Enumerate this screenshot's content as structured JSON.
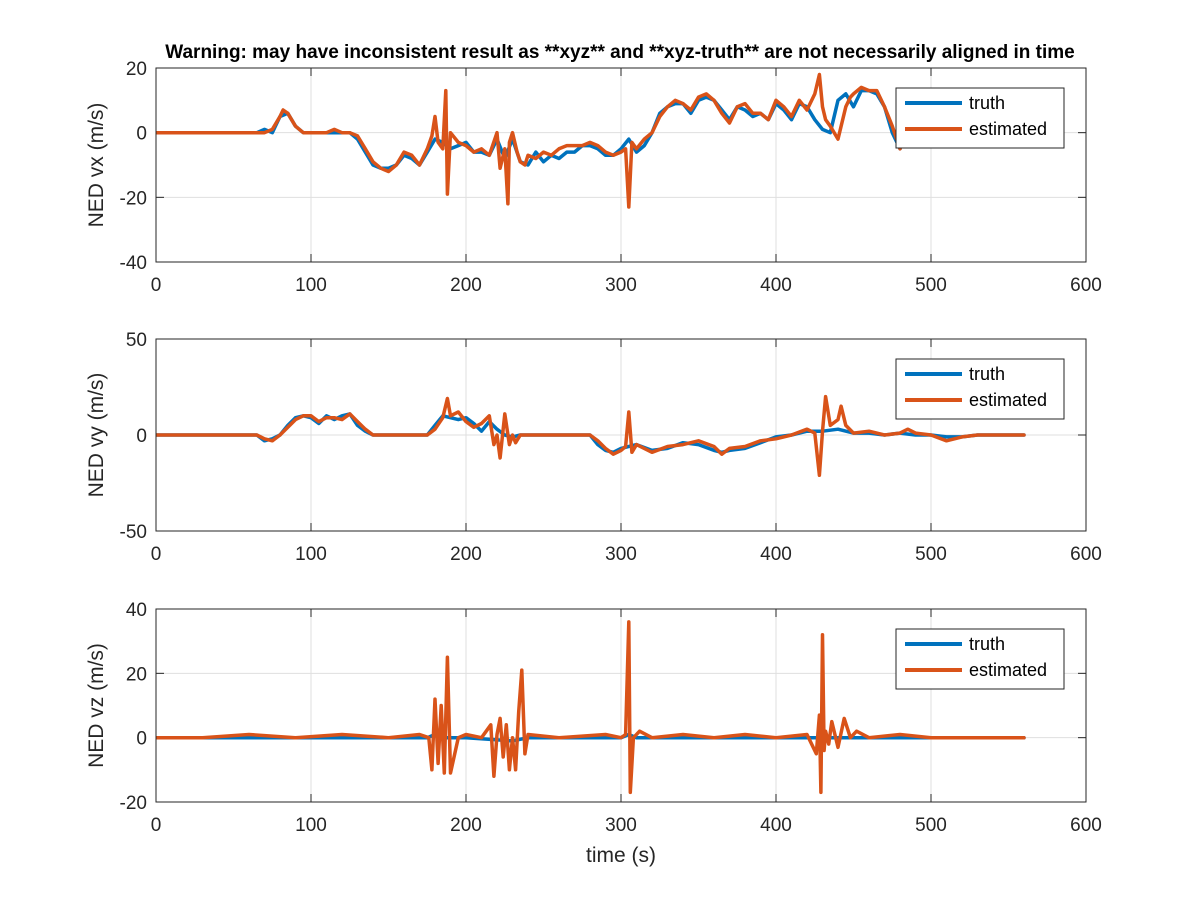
{
  "figure": {
    "title": "Warning: may have inconsistent result as **xyz** and **xyz-truth** are not necessarily aligned in time"
  },
  "colors": {
    "truth": "#0072BD",
    "estimated": "#D95319",
    "grid": "#dfdfdf",
    "axis": "#262626"
  },
  "chart_data": [
    {
      "type": "line",
      "title": "Warning: may have inconsistent result as **xyz** and **xyz-truth** are not necessarily aligned in time",
      "xlabel": "",
      "ylabel": "NED vx (m/s)",
      "xlim": [
        0,
        600
      ],
      "ylim": [
        -40,
        20
      ],
      "xticks": [
        0,
        100,
        200,
        300,
        400,
        500,
        600
      ],
      "yticks": [
        -40,
        -20,
        0,
        20
      ],
      "grid": true,
      "legend": {
        "position": "top-right",
        "entries": [
          "truth",
          "estimated"
        ]
      },
      "series": [
        {
          "name": "truth",
          "x": [
            0,
            60,
            65,
            70,
            75,
            80,
            85,
            90,
            95,
            100,
            110,
            120,
            125,
            130,
            135,
            140,
            145,
            150,
            155,
            160,
            165,
            170,
            175,
            180,
            185,
            190,
            195,
            200,
            205,
            210,
            215,
            220,
            225,
            230,
            235,
            240,
            245,
            250,
            255,
            260,
            265,
            270,
            275,
            280,
            285,
            290,
            295,
            300,
            305,
            310,
            315,
            320,
            325,
            330,
            335,
            340,
            345,
            350,
            355,
            360,
            365,
            370,
            375,
            380,
            385,
            390,
            395,
            400,
            405,
            410,
            415,
            420,
            425,
            430,
            435,
            440,
            445,
            450,
            455,
            460,
            465,
            470,
            475,
            480
          ],
          "y": [
            0,
            0,
            0,
            1,
            0,
            5,
            6,
            2,
            0,
            0,
            0,
            0,
            0,
            -2,
            -6,
            -10,
            -11,
            -11,
            -10,
            -7,
            -8,
            -10,
            -6,
            -2,
            -3,
            -5,
            -4,
            -3,
            -6,
            -6,
            -7,
            -2,
            -8,
            -2,
            -9,
            -10,
            -6,
            -9,
            -7,
            -8,
            -6,
            -6,
            -4,
            -4,
            -5,
            -7,
            -7,
            -5,
            -2,
            -6,
            -4,
            0,
            6,
            8,
            9,
            9,
            6,
            10,
            11,
            10,
            7,
            4,
            8,
            7,
            5,
            6,
            4,
            9,
            7,
            4,
            9,
            8,
            4,
            1,
            0,
            10,
            12,
            8,
            13,
            13,
            12,
            8,
            0,
            -5
          ],
          "color": "#0072BD"
        },
        {
          "name": "estimated",
          "x": [
            0,
            60,
            65,
            70,
            75,
            80,
            82,
            85,
            90,
            95,
            100,
            110,
            115,
            120,
            125,
            130,
            135,
            140,
            145,
            150,
            155,
            160,
            165,
            170,
            175,
            178,
            180,
            182,
            185,
            187,
            188,
            190,
            195,
            200,
            205,
            210,
            215,
            220,
            222,
            225,
            227,
            228,
            230,
            233,
            235,
            238,
            240,
            245,
            250,
            255,
            260,
            265,
            270,
            275,
            280,
            285,
            290,
            295,
            300,
            303,
            305,
            307,
            310,
            315,
            320,
            325,
            330,
            335,
            340,
            345,
            350,
            355,
            360,
            365,
            370,
            375,
            380,
            385,
            390,
            395,
            400,
            405,
            410,
            415,
            420,
            425,
            428,
            430,
            432,
            435,
            440,
            445,
            448,
            450,
            455,
            460,
            465,
            470,
            475,
            480
          ],
          "y": [
            0,
            0,
            0,
            0,
            1,
            5,
            7,
            6,
            2,
            0,
            0,
            0,
            1,
            0,
            0,
            -1,
            -5,
            -9,
            -11,
            -12,
            -10,
            -6,
            -7,
            -10,
            -5,
            -1,
            5,
            -3,
            -5,
            13,
            -19,
            0,
            -3,
            -4,
            -6,
            -5,
            -7,
            0,
            -11,
            -5,
            -22,
            -3,
            0,
            -6,
            -9,
            -10,
            -7,
            -8,
            -6,
            -7,
            -5,
            -4,
            -4,
            -4,
            -3,
            -4,
            -6,
            -7,
            -6,
            -5,
            -23,
            -3,
            -5,
            -2,
            0,
            5,
            8,
            10,
            9,
            7,
            11,
            12,
            10,
            6,
            3,
            8,
            9,
            6,
            6,
            4,
            10,
            8,
            5,
            10,
            7,
            12,
            18,
            8,
            4,
            2,
            -2,
            8,
            11,
            12,
            14,
            13,
            13,
            8,
            2,
            -5
          ],
          "color": "#D95319"
        }
      ]
    },
    {
      "type": "line",
      "title": "",
      "xlabel": "",
      "ylabel": "NED vy (m/s)",
      "xlim": [
        0,
        600
      ],
      "ylim": [
        -50,
        50
      ],
      "xticks": [
        0,
        100,
        200,
        300,
        400,
        500,
        600
      ],
      "yticks": [
        -50,
        0,
        50
      ],
      "grid": true,
      "legend": {
        "position": "top-right",
        "entries": [
          "truth",
          "estimated"
        ]
      },
      "series": [
        {
          "name": "truth",
          "x": [
            0,
            65,
            70,
            75,
            80,
            85,
            90,
            95,
            100,
            105,
            110,
            115,
            120,
            125,
            130,
            135,
            140,
            150,
            160,
            170,
            175,
            180,
            185,
            190,
            195,
            200,
            205,
            210,
            215,
            220,
            225,
            230,
            235,
            240,
            250,
            260,
            270,
            280,
            285,
            290,
            295,
            300,
            310,
            320,
            330,
            340,
            350,
            360,
            365,
            370,
            380,
            390,
            400,
            410,
            420,
            430,
            440,
            450,
            460,
            470,
            480,
            490,
            500,
            510,
            520,
            530,
            540,
            550,
            560
          ],
          "y": [
            0,
            0,
            -3,
            -2,
            0,
            5,
            9,
            10,
            9,
            6,
            10,
            8,
            10,
            11,
            5,
            2,
            0,
            0,
            0,
            0,
            0,
            5,
            10,
            9,
            8,
            9,
            6,
            2,
            7,
            3,
            0,
            -1,
            0,
            0,
            0,
            0,
            0,
            0,
            -5,
            -8,
            -9,
            -7,
            -5,
            -8,
            -7,
            -4,
            -5,
            -8,
            -9,
            -8,
            -7,
            -4,
            -1,
            0,
            2,
            2,
            3,
            1,
            1,
            0,
            1,
            0,
            0,
            -1,
            -1,
            0,
            0,
            0,
            0
          ],
          "color": "#0072BD"
        },
        {
          "name": "estimated",
          "x": [
            0,
            65,
            70,
            75,
            80,
            85,
            90,
            95,
            100,
            105,
            110,
            115,
            120,
            125,
            130,
            135,
            140,
            150,
            160,
            170,
            175,
            180,
            185,
            188,
            190,
            195,
            200,
            205,
            210,
            215,
            218,
            220,
            222,
            225,
            228,
            230,
            232,
            235,
            240,
            250,
            260,
            270,
            280,
            285,
            290,
            295,
            300,
            303,
            305,
            307,
            310,
            320,
            330,
            340,
            350,
            360,
            365,
            370,
            380,
            390,
            400,
            410,
            420,
            425,
            428,
            430,
            432,
            435,
            440,
            442,
            445,
            450,
            460,
            470,
            480,
            485,
            490,
            500,
            510,
            520,
            530,
            540,
            550,
            560
          ],
          "y": [
            0,
            0,
            -2,
            -3,
            0,
            4,
            8,
            10,
            10,
            7,
            9,
            9,
            8,
            11,
            7,
            3,
            0,
            0,
            0,
            0,
            0,
            3,
            9,
            19,
            10,
            12,
            7,
            4,
            6,
            10,
            -5,
            0,
            -12,
            11,
            -5,
            0,
            -4,
            0,
            0,
            0,
            0,
            0,
            0,
            -3,
            -7,
            -10,
            -8,
            -6,
            12,
            -9,
            -5,
            -9,
            -6,
            -5,
            -3,
            -6,
            -10,
            -7,
            -6,
            -3,
            -2,
            0,
            3,
            1,
            -21,
            2,
            20,
            5,
            8,
            15,
            5,
            1,
            2,
            0,
            1,
            3,
            1,
            0,
            -3,
            -1,
            0,
            0,
            0,
            0
          ],
          "color": "#D95319"
        }
      ]
    },
    {
      "type": "line",
      "title": "",
      "xlabel": "time (s)",
      "ylabel": "NED vz (m/s)",
      "xlim": [
        0,
        600
      ],
      "ylim": [
        -20,
        40
      ],
      "xticks": [
        0,
        100,
        200,
        300,
        400,
        500,
        600
      ],
      "yticks": [
        -20,
        0,
        20,
        40
      ],
      "grid": true,
      "legend": {
        "position": "top-right",
        "entries": [
          "truth",
          "estimated"
        ]
      },
      "series": [
        {
          "name": "truth",
          "x": [
            0,
            100,
            175,
            180,
            185,
            190,
            200,
            230,
            240,
            300,
            305,
            310,
            400,
            430,
            440,
            500,
            560
          ],
          "y": [
            0,
            0,
            0,
            1,
            0,
            0,
            0,
            -1,
            0,
            0,
            1,
            0,
            0,
            0,
            0,
            0,
            0
          ],
          "color": "#0072BD"
        },
        {
          "name": "estimated",
          "x": [
            0,
            30,
            60,
            90,
            120,
            150,
            170,
            176,
            178,
            180,
            182,
            184,
            186,
            188,
            190,
            195,
            200,
            210,
            216,
            218,
            220,
            222,
            224,
            226,
            228,
            230,
            232,
            234,
            236,
            238,
            240,
            260,
            290,
            300,
            303,
            305,
            306,
            308,
            312,
            320,
            340,
            360,
            380,
            400,
            420,
            426,
            428,
            429,
            430,
            431,
            432,
            434,
            436,
            440,
            444,
            448,
            452,
            460,
            480,
            500,
            520,
            540,
            560
          ],
          "y": [
            0,
            0,
            1,
            0,
            1,
            0,
            1,
            0,
            -10,
            12,
            -8,
            10,
            -11,
            25,
            -11,
            0,
            1,
            0,
            4,
            -12,
            1,
            6,
            -6,
            4,
            -10,
            0,
            -10,
            8,
            21,
            -5,
            1,
            0,
            1,
            0,
            1,
            36,
            -17,
            0,
            2,
            0,
            1,
            0,
            1,
            0,
            1,
            -5,
            7,
            -17,
            32,
            -4,
            2,
            -2,
            5,
            -3,
            6,
            0,
            2,
            0,
            1,
            0,
            0,
            0,
            0
          ],
          "color": "#D95319"
        }
      ]
    }
  ]
}
